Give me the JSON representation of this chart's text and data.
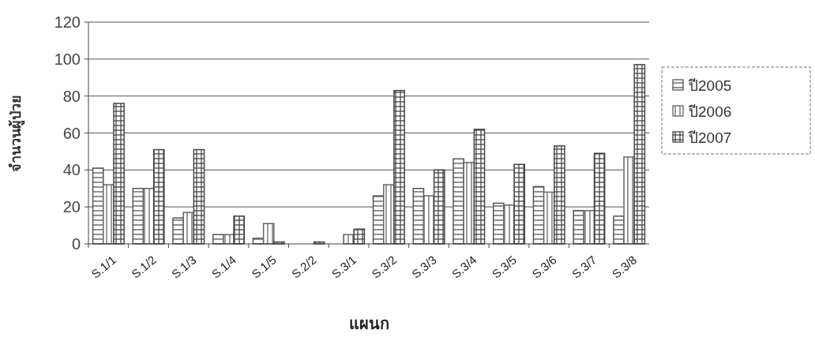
{
  "chart_data": {
    "type": "bar",
    "xlabel": "แผนก",
    "ylabel": "จำนวนผู้ป่วย",
    "categories": [
      "S.1/1",
      "S.1/2",
      "S.1/3",
      "S.1/4",
      "S.1/5",
      "S.2/2",
      "S.3/1",
      "S.3/2",
      "S.3/3",
      "S.3/4",
      "S.3/5",
      "S.3/6",
      "S.3/7",
      "S.3/8"
    ],
    "series": [
      {
        "name": "ปี2005",
        "color": "#555555",
        "values": [
          41,
          30,
          14,
          5,
          3,
          0,
          0,
          26,
          30,
          46,
          22,
          31,
          18,
          15
        ]
      },
      {
        "name": "ปี2006",
        "color": "#666666",
        "values": [
          32,
          30,
          17,
          5,
          11,
          0,
          5,
          32,
          26,
          44,
          21,
          28,
          18,
          47
        ]
      },
      {
        "name": "ปี2007",
        "color": "#444444",
        "values": [
          76,
          51,
          51,
          15,
          1,
          1,
          8,
          83,
          40,
          62,
          43,
          53,
          49,
          97
        ]
      }
    ],
    "ylim": [
      0,
      120
    ],
    "yticks": [
      0,
      20,
      40,
      60,
      80,
      100,
      120
    ],
    "grid": "y",
    "legend": "right"
  }
}
